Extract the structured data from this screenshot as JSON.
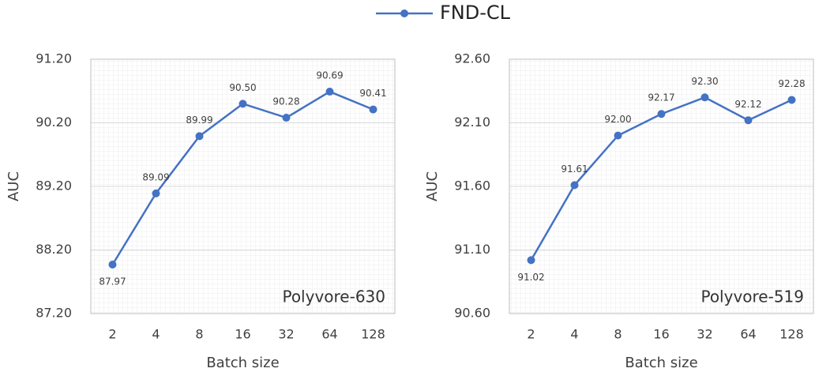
{
  "chart_data": [
    {
      "type": "line",
      "categories": [
        "2",
        "4",
        "8",
        "16",
        "32",
        "64",
        "128"
      ],
      "series": [
        {
          "name": "FND-CL",
          "color": "#4472c4",
          "values": [
            87.97,
            89.09,
            89.99,
            90.5,
            90.28,
            90.69,
            90.41
          ],
          "value_labels": [
            "87.97",
            "89.09",
            "89.99",
            "90.50",
            "90.28",
            "90.69",
            "90.41"
          ]
        }
      ],
      "ylim": [
        87.2,
        91.2
      ],
      "yticks": [
        {
          "value": 87.2,
          "label": "87.20"
        },
        {
          "value": 88.2,
          "label": "88.20"
        },
        {
          "value": 89.2,
          "label": "89.20"
        },
        {
          "value": 90.2,
          "label": "90.20"
        },
        {
          "value": 91.2,
          "label": "91.20"
        }
      ],
      "y_label": "AUC",
      "x_label": "Batch size",
      "annotation": "Polyvore-630",
      "grid": true
    },
    {
      "type": "line",
      "categories": [
        "2",
        "4",
        "8",
        "16",
        "32",
        "64",
        "128"
      ],
      "series": [
        {
          "color": "#4472c4",
          "values": [
            91.02,
            91.61,
            92.0,
            92.17,
            92.3,
            92.12,
            92.28
          ],
          "value_labels": [
            "91.02",
            "91.61",
            "92.00",
            "92.17",
            "92.30",
            "92.12",
            "92.28"
          ]
        }
      ],
      "ylim": [
        90.6,
        92.6
      ],
      "yticks": [
        {
          "value": 90.6,
          "label": "90.60"
        },
        {
          "value": 91.1,
          "label": "91.10"
        },
        {
          "value": 91.6,
          "label": "91.60"
        },
        {
          "value": 92.1,
          "label": "92.10"
        },
        {
          "value": 92.6,
          "label": "92.60"
        }
      ],
      "y_label": "AUC",
      "x_label": "Batch size",
      "annotation": "Polyvore-519",
      "grid": true
    }
  ]
}
